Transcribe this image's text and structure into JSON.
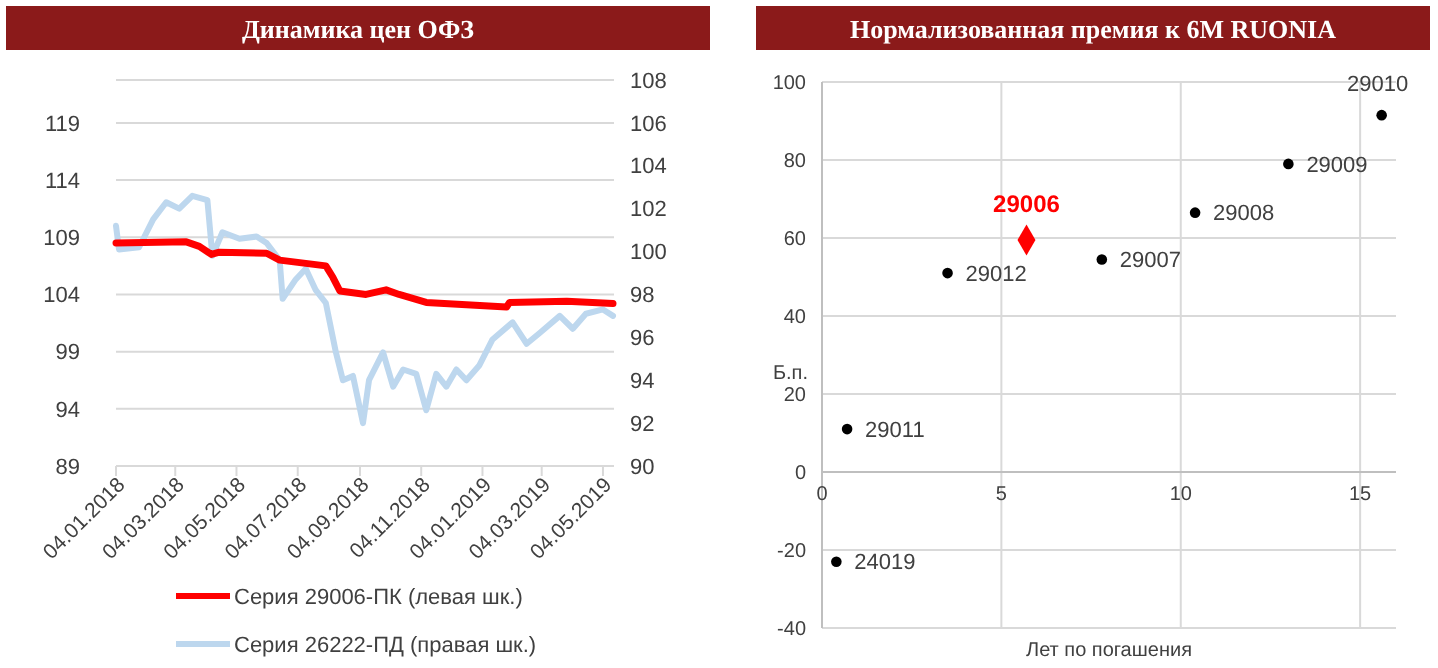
{
  "chart_data": [
    {
      "type": "line",
      "title": "Динамика цен ОФЗ",
      "grid": "y",
      "legend": "bottom",
      "xlim": [
        "2018-01-04",
        "2019-05-15"
      ],
      "xticks": [
        {
          "value": "2018-01-04",
          "label": "04.01.2018"
        },
        {
          "value": "2018-03-04",
          "label": "04.03.2018"
        },
        {
          "value": "2018-05-04",
          "label": "04.05.2018"
        },
        {
          "value": "2018-07-04",
          "label": "04.07.2018"
        },
        {
          "value": "2018-09-04",
          "label": "04.09.2018"
        },
        {
          "value": "2018-11-04",
          "label": "04.11.2018"
        },
        {
          "value": "2019-01-04",
          "label": "04.01.2019"
        },
        {
          "value": "2019-03-04",
          "label": "04.03.2019"
        },
        {
          "value": "2019-05-04",
          "label": "04.05.2019"
        }
      ],
      "ylim": [
        89,
        122.75
      ],
      "yticks": [
        89,
        94,
        99,
        104,
        109,
        114,
        119
      ],
      "y2lim": [
        90,
        108
      ],
      "y2ticks": [
        90,
        92,
        94,
        96,
        98,
        100,
        102,
        104,
        106,
        108
      ],
      "series": [
        {
          "name": "Серия 29006-ПК (левая шк.)",
          "color": "#ff0000",
          "x": [
            "2018-01-04",
            "2018-03-15",
            "2018-03-28",
            "2018-04-09",
            "2018-04-17",
            "2018-06-03",
            "2018-06-16",
            "2018-08-01",
            "2018-08-08",
            "2018-08-15",
            "2018-09-10",
            "2018-09-30",
            "2018-10-13",
            "2018-11-09",
            "2018-12-19",
            "2019-01-28",
            "2019-01-31",
            "2019-03-29",
            "2019-05-14"
          ],
          "values": [
            108.5,
            108.6,
            108.2,
            107.5,
            107.7,
            107.6,
            107.0,
            106.5,
            105.5,
            104.3,
            104.0,
            104.4,
            104.0,
            103.3,
            103.1,
            102.9,
            103.3,
            103.4,
            103.2
          ]
        },
        {
          "name": "Серия 26222-ПД (правая шк.)",
          "color": "#bdd7ee",
          "axis": "y2",
          "x": [
            "2018-01-04",
            "2018-01-07",
            "2018-01-27",
            "2018-02-10",
            "2018-02-23",
            "2018-03-08",
            "2018-03-21",
            "2018-04-05",
            "2018-04-10",
            "2018-04-20",
            "2018-05-07",
            "2018-05-24",
            "2018-06-03",
            "2018-06-16",
            "2018-06-19",
            "2018-07-02",
            "2018-07-12",
            "2018-07-22",
            "2018-08-01",
            "2018-08-11",
            "2018-08-18",
            "2018-08-28",
            "2018-09-07",
            "2018-09-13",
            "2018-09-27",
            "2018-10-07",
            "2018-10-17",
            "2018-10-30",
            "2018-11-09",
            "2018-11-19",
            "2018-11-29",
            "2018-12-09",
            "2018-12-19",
            "2019-01-01",
            "2019-01-14",
            "2019-02-03",
            "2019-02-17",
            "2019-03-02",
            "2019-03-22",
            "2019-04-04",
            "2019-04-17",
            "2019-05-04",
            "2019-05-14"
          ],
          "values": [
            101.2,
            100.1,
            100.2,
            101.5,
            102.3,
            102.0,
            102.6,
            102.4,
            99.8,
            100.9,
            100.6,
            100.7,
            100.4,
            99.6,
            97.8,
            98.7,
            99.2,
            98.2,
            97.6,
            95.3,
            94.0,
            94.2,
            92.0,
            94.0,
            95.3,
            93.7,
            94.5,
            94.3,
            92.6,
            94.3,
            93.7,
            94.5,
            94.0,
            94.7,
            95.9,
            96.7,
            95.7,
            96.2,
            97.0,
            96.4,
            97.1,
            97.3,
            97.0
          ]
        }
      ]
    },
    {
      "type": "scatter",
      "title": "Нормализованная премия к 6М RUONIA",
      "xlabel": "Лет по погашения",
      "ylabel": "Б.п.",
      "grid": true,
      "xlim": [
        0,
        16
      ],
      "xticks": [
        0,
        5,
        10,
        15
      ],
      "ylim": [
        -40,
        100
      ],
      "yticks": [
        -40,
        -20,
        0,
        20,
        40,
        60,
        80,
        100
      ],
      "series": [
        {
          "color": "#000000",
          "marker": "circle",
          "x": [
            0.4,
            0.7,
            3.5,
            7.8,
            10.4,
            13.0,
            15.6
          ],
          "values": [
            -23,
            11,
            51,
            54.5,
            66.5,
            79,
            91.5
          ]
        },
        {
          "color": "#ff0000",
          "marker": "diamond",
          "x": [
            5.7
          ],
          "values": [
            59.5
          ]
        }
      ],
      "annotations": [
        {
          "text": "24019",
          "x": 0.4,
          "y": -23
        },
        {
          "text": "29011",
          "x": 0.7,
          "y": 11
        },
        {
          "text": "29012",
          "x": 3.5,
          "y": 51
        },
        {
          "text": "29006",
          "x": 5.7,
          "y": 59.5
        },
        {
          "text": "29007",
          "x": 7.8,
          "y": 54.5
        },
        {
          "text": "29008",
          "x": 10.4,
          "y": 66.5
        },
        {
          "text": "29009",
          "x": 13.0,
          "y": 79
        },
        {
          "text": "29010",
          "x": 15.6,
          "y": 91.5
        }
      ]
    }
  ]
}
